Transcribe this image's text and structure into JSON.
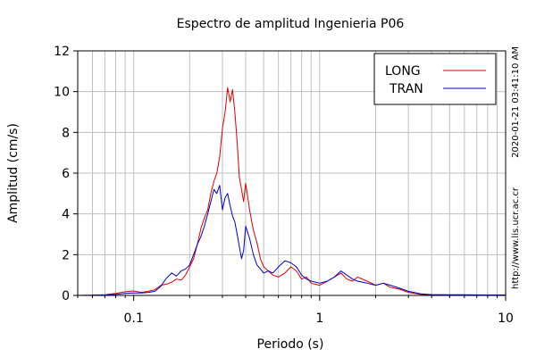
{
  "chart_data": {
    "type": "line",
    "title": "Espectro de amplitud Ingenieria P06",
    "xlabel": "Periodo (s)",
    "ylabel": "Amplitud (cm/s)",
    "xscale": "log",
    "xlim": [
      0.05,
      10
    ],
    "ylim": [
      0,
      12
    ],
    "x_tick_labels": [
      "0.1",
      "1",
      "10"
    ],
    "x_tick_values": [
      0.1,
      1,
      10
    ],
    "y_tick_labels": [
      "0",
      "2",
      "4",
      "6",
      "8",
      "10",
      "12"
    ],
    "y_tick_values": [
      0,
      2,
      4,
      6,
      8,
      10,
      12
    ],
    "grid": true,
    "legend_position": "top-right",
    "side_texts": [
      "2020-01-21 03:41:10 AM",
      "http://www.lis.ucr.ac.cr"
    ],
    "series": [
      {
        "name": "LONG",
        "color": "#dd0000",
        "x": [
          0.05,
          0.06,
          0.07,
          0.08,
          0.09,
          0.1,
          0.11,
          0.12,
          0.13,
          0.14,
          0.15,
          0.16,
          0.17,
          0.18,
          0.19,
          0.2,
          0.21,
          0.22,
          0.23,
          0.24,
          0.25,
          0.26,
          0.27,
          0.28,
          0.29,
          0.3,
          0.31,
          0.32,
          0.33,
          0.34,
          0.35,
          0.36,
          0.37,
          0.38,
          0.39,
          0.4,
          0.42,
          0.44,
          0.46,
          0.48,
          0.5,
          0.53,
          0.56,
          0.6,
          0.65,
          0.7,
          0.75,
          0.8,
          0.85,
          0.9,
          1.0,
          1.1,
          1.2,
          1.3,
          1.4,
          1.5,
          1.6,
          1.8,
          2.0,
          2.2,
          2.4,
          2.7,
          3.0,
          3.5,
          4.0,
          5.0,
          6.0,
          8.0,
          10.0
        ],
        "y": [
          0.0,
          0.01,
          0.03,
          0.1,
          0.18,
          0.22,
          0.15,
          0.2,
          0.28,
          0.5,
          0.55,
          0.65,
          0.8,
          0.75,
          1.0,
          1.4,
          1.8,
          2.5,
          3.3,
          3.8,
          4.2,
          5.0,
          5.6,
          6.0,
          6.8,
          8.2,
          9.0,
          10.2,
          9.5,
          10.1,
          9.0,
          7.5,
          5.8,
          5.2,
          4.6,
          5.5,
          4.2,
          3.2,
          2.6,
          1.8,
          1.4,
          1.2,
          1.0,
          0.9,
          1.1,
          1.4,
          1.2,
          0.8,
          0.9,
          0.6,
          0.5,
          0.7,
          0.9,
          1.1,
          0.8,
          0.7,
          0.9,
          0.7,
          0.5,
          0.6,
          0.4,
          0.3,
          0.15,
          0.05,
          0.03,
          0.02,
          0.01,
          0.01,
          0.0
        ]
      },
      {
        "name": "TRAN",
        "color": "#0000cc",
        "x": [
          0.05,
          0.06,
          0.07,
          0.08,
          0.09,
          0.1,
          0.11,
          0.12,
          0.13,
          0.14,
          0.15,
          0.16,
          0.17,
          0.18,
          0.19,
          0.2,
          0.21,
          0.22,
          0.23,
          0.24,
          0.25,
          0.26,
          0.27,
          0.28,
          0.29,
          0.3,
          0.31,
          0.32,
          0.33,
          0.34,
          0.35,
          0.36,
          0.37,
          0.38,
          0.39,
          0.4,
          0.42,
          0.44,
          0.46,
          0.48,
          0.5,
          0.53,
          0.56,
          0.6,
          0.65,
          0.7,
          0.75,
          0.8,
          0.85,
          0.9,
          1.0,
          1.1,
          1.2,
          1.3,
          1.4,
          1.5,
          1.6,
          1.8,
          2.0,
          2.2,
          2.4,
          2.7,
          3.0,
          3.5,
          4.0,
          5.0,
          6.0,
          8.0,
          10.0
        ],
        "y": [
          0.0,
          0.01,
          0.02,
          0.05,
          0.1,
          0.12,
          0.12,
          0.15,
          0.2,
          0.45,
          0.85,
          1.1,
          0.95,
          1.2,
          1.3,
          1.5,
          2.0,
          2.5,
          2.9,
          3.4,
          4.0,
          4.6,
          5.2,
          5.0,
          5.4,
          4.2,
          4.8,
          5.0,
          4.4,
          3.9,
          3.6,
          3.0,
          2.4,
          1.8,
          2.2,
          3.4,
          2.8,
          2.0,
          1.5,
          1.3,
          1.1,
          1.2,
          1.1,
          1.4,
          1.7,
          1.6,
          1.4,
          1.0,
          0.8,
          0.7,
          0.6,
          0.7,
          0.9,
          1.2,
          1.0,
          0.8,
          0.7,
          0.6,
          0.5,
          0.6,
          0.5,
          0.35,
          0.2,
          0.08,
          0.04,
          0.03,
          0.03,
          0.02,
          0.02
        ]
      }
    ]
  }
}
